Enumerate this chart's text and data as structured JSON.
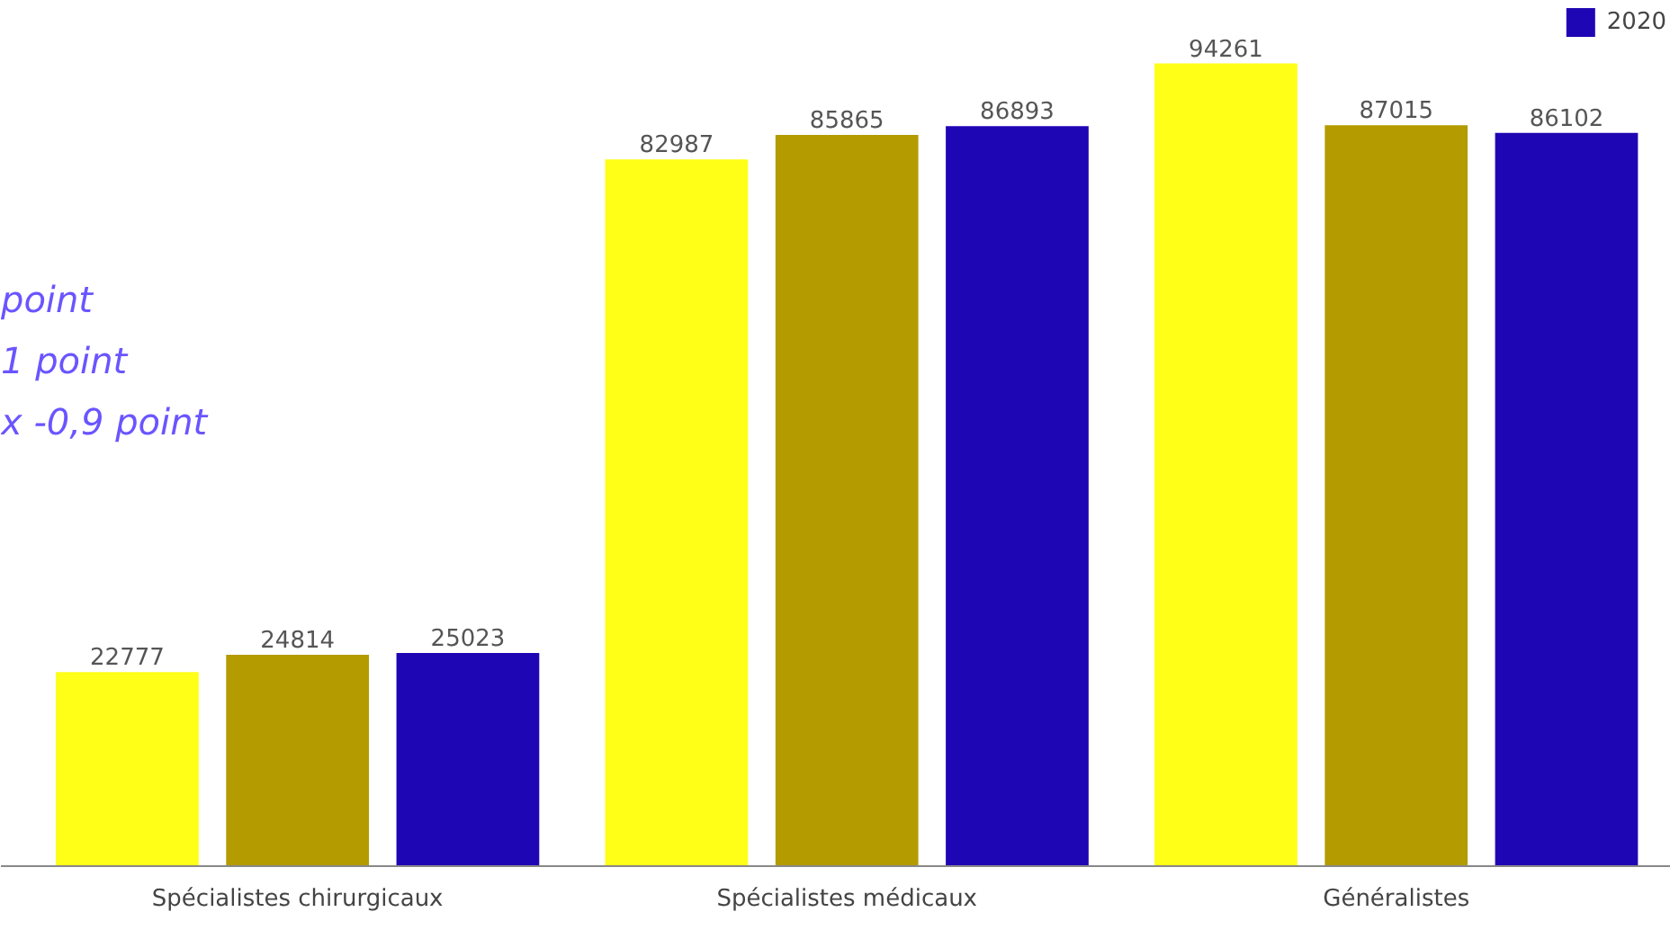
{
  "chart_data": {
    "type": "bar",
    "categories": [
      "Spécialistes chirurgicaux",
      "Spécialistes médicaux",
      "Généralistes"
    ],
    "series": [
      {
        "color": "#ffff17",
        "values": [
          22777,
          82987,
          94261
        ]
      },
      {
        "color": "#b39b00",
        "values": [
          24814,
          85865,
          87015
        ]
      },
      {
        "name": "2020",
        "color": "#1f06b4",
        "values": [
          25023,
          86893,
          86102
        ]
      }
    ],
    "data_labels": true,
    "legend": "top right",
    "grid": false,
    "annotations": [
      "point",
      "1 point",
      "x -0,9 point"
    ]
  }
}
